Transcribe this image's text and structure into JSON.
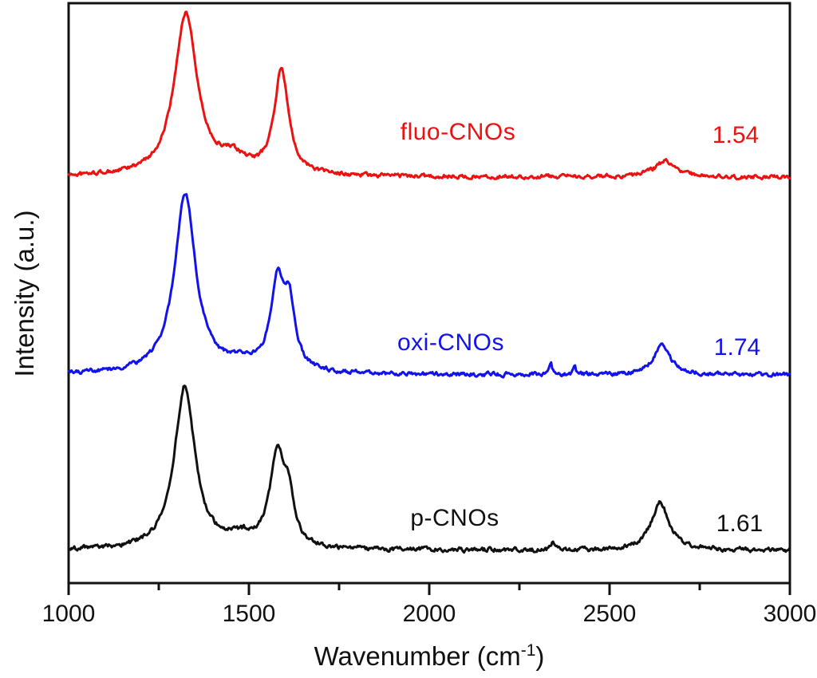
{
  "figure": {
    "background_color": "#ffffff",
    "frame_color": "#111111",
    "tick_label_color": "#111111"
  },
  "chart_data": {
    "type": "line",
    "title": "",
    "xlabel": {
      "prefix": "Wavenumber (cm",
      "superscript": "-1",
      "suffix": ")"
    },
    "ylabel": "Intensity (a.u.)",
    "x_axis": {
      "min": 1000,
      "max": 3000,
      "major_ticks": [
        1000,
        1500,
        2000,
        2500,
        3000
      ],
      "minor_ticks": [
        1250,
        1750,
        2250,
        2750
      ]
    },
    "y_axis": {
      "label": "Intensity (a.u.)",
      "tick_labels": "none"
    },
    "legend_position": "inline-labels",
    "grid": false,
    "series": [
      {
        "name": "fluo-CNOs",
        "color": "#ee1111",
        "ratio_label": "1.54",
        "baseline_au": 509,
        "noise_amplitude_au": 2.1,
        "peaks": [
          {
            "center_cm1": 1325,
            "height_au": 204,
            "hwhm_cm1": 38
          },
          {
            "center_cm1": 1455,
            "height_au": 18,
            "hwhm_cm1": 45
          },
          {
            "center_cm1": 1590,
            "height_au": 130,
            "hwhm_cm1": 24
          },
          {
            "center_cm1": 2655,
            "height_au": 20,
            "hwhm_cm1": 35
          }
        ]
      },
      {
        "name": "oxi-CNOs",
        "color": "#1212ee",
        "ratio_label": "1.74",
        "baseline_au": 261,
        "noise_amplitude_au": 2.1,
        "peaks": [
          {
            "center_cm1": 1323,
            "height_au": 225,
            "hwhm_cm1": 36
          },
          {
            "center_cm1": 1480,
            "height_au": 10,
            "hwhm_cm1": 50
          },
          {
            "center_cm1": 1578,
            "height_au": 105,
            "hwhm_cm1": 22
          },
          {
            "center_cm1": 1612,
            "height_au": 78,
            "hwhm_cm1": 20
          },
          {
            "center_cm1": 2337,
            "height_au": 14,
            "hwhm_cm1": 4
          },
          {
            "center_cm1": 2403,
            "height_au": 9,
            "hwhm_cm1": 4
          },
          {
            "center_cm1": 2645,
            "height_au": 36,
            "hwhm_cm1": 28
          }
        ]
      },
      {
        "name": "p-CNOs",
        "color": "#111111",
        "ratio_label": "1.61",
        "baseline_au": 41,
        "noise_amplitude_au": 2.3,
        "peaks": [
          {
            "center_cm1": 1322,
            "height_au": 205,
            "hwhm_cm1": 34
          },
          {
            "center_cm1": 1480,
            "height_au": 12,
            "hwhm_cm1": 50
          },
          {
            "center_cm1": 1578,
            "height_au": 112,
            "hwhm_cm1": 24
          },
          {
            "center_cm1": 1610,
            "height_au": 55,
            "hwhm_cm1": 18
          },
          {
            "center_cm1": 2343,
            "height_au": 11,
            "hwhm_cm1": 4
          },
          {
            "center_cm1": 2640,
            "height_au": 60,
            "hwhm_cm1": 30
          }
        ]
      }
    ]
  }
}
